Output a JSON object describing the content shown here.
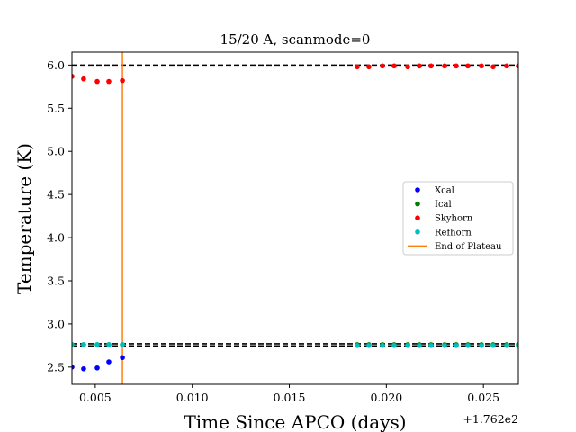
{
  "chart_data": {
    "type": "scatter",
    "title": "15/20 A, scanmode=0",
    "xlabel": "Time Since APCO (days)",
    "ylabel": "Temperature (K)",
    "x_offset_label": "+1.762e2",
    "xlim": [
      0.0038,
      0.0268
    ],
    "ylim": [
      2.3,
      6.15
    ],
    "x_ticks": [
      0.005,
      0.01,
      0.015,
      0.02,
      0.025
    ],
    "x_tick_labels": [
      "0.005",
      "0.010",
      "0.015",
      "0.020",
      "0.025"
    ],
    "y_ticks": [
      2.5,
      3.0,
      3.5,
      4.0,
      4.5,
      5.0,
      5.5,
      6.0
    ],
    "y_tick_labels": [
      "2.5",
      "3.0",
      "3.5",
      "4.0",
      "4.5",
      "5.0",
      "5.5",
      "6.0"
    ],
    "grid": false,
    "legend_position": "center-right",
    "series": [
      {
        "name": "Xcal",
        "color": "#0000ff",
        "x": [
          0.0038,
          0.0044,
          0.0051,
          0.0057,
          0.0064
        ],
        "y": [
          2.5,
          2.48,
          2.49,
          2.56,
          2.61
        ]
      },
      {
        "name": "Ical",
        "color": "#008000",
        "x": [
          0.0038,
          0.0044,
          0.0051,
          0.0057,
          0.0064,
          0.0185,
          0.0191,
          0.0198,
          0.0204,
          0.0211,
          0.0217,
          0.0223,
          0.023,
          0.0236,
          0.0242,
          0.0249,
          0.0255,
          0.0262,
          0.0268
        ],
        "y": [
          2.76,
          2.76,
          2.76,
          2.76,
          2.76,
          2.76,
          2.76,
          2.76,
          2.76,
          2.76,
          2.76,
          2.76,
          2.76,
          2.76,
          2.76,
          2.76,
          2.76,
          2.76,
          2.76
        ]
      },
      {
        "name": "Skyhorn",
        "color": "#ff0000",
        "x": [
          0.0038,
          0.0044,
          0.0051,
          0.0057,
          0.0064,
          0.0185,
          0.0191,
          0.0198,
          0.0204,
          0.0211,
          0.0217,
          0.0223,
          0.023,
          0.0236,
          0.0242,
          0.0249,
          0.0255,
          0.0262,
          0.0268
        ],
        "y": [
          5.87,
          5.84,
          5.81,
          5.81,
          5.82,
          5.98,
          5.98,
          5.99,
          5.99,
          5.98,
          5.99,
          5.99,
          5.99,
          5.99,
          5.99,
          5.99,
          5.98,
          5.99,
          5.99
        ]
      },
      {
        "name": "Refhorn",
        "color": "#00bfbf",
        "x": [
          0.0038,
          0.0044,
          0.0051,
          0.0057,
          0.0064,
          0.0185,
          0.0191,
          0.0198,
          0.0204,
          0.0211,
          0.0217,
          0.0223,
          0.023,
          0.0236,
          0.0242,
          0.0249,
          0.0255,
          0.0262,
          0.0268
        ],
        "y": [
          2.76,
          2.76,
          2.76,
          2.76,
          2.76,
          2.75,
          2.75,
          2.75,
          2.75,
          2.75,
          2.75,
          2.75,
          2.75,
          2.75,
          2.75,
          2.75,
          2.75,
          2.75,
          2.75
        ]
      }
    ],
    "reference_lines": [
      {
        "axis": "y",
        "value": 6.0,
        "style": "dashed",
        "color": "#000000"
      },
      {
        "axis": "y",
        "value": 2.77,
        "style": "dashed",
        "color": "#000000"
      },
      {
        "axis": "y",
        "value": 2.745,
        "style": "dashed",
        "color": "#000000"
      }
    ],
    "vertical_line": {
      "name": "End of Plateau",
      "x": 0.0064,
      "color": "#ff7f0e"
    }
  }
}
